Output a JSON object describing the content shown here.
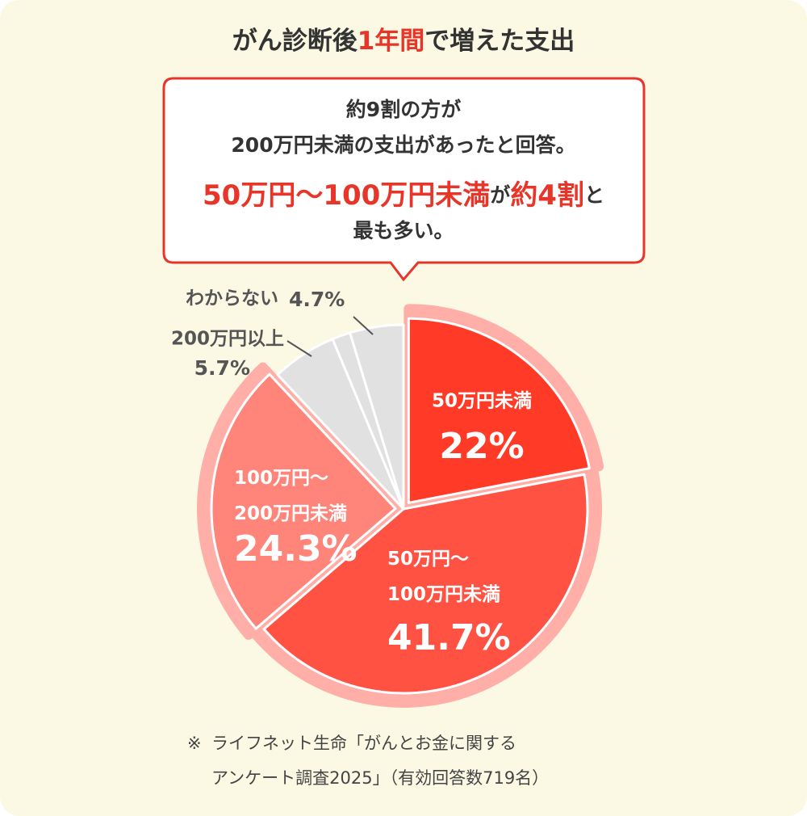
{
  "chart_data": {
    "type": "pie",
    "title": [
      "がん診断後",
      "1年間",
      "で増えた支出"
    ],
    "title_highlight": 1,
    "categories": [
      "50万円未満",
      "50万円〜\n100万円未満",
      "100万円〜\n200万円未満",
      "200万円以上",
      null,
      "わからない"
    ],
    "values": [
      22,
      41.7,
      24.3,
      5.7,
      1.6,
      4.7
    ],
    "value_labels": [
      "22%",
      "41.7%",
      "24.3%",
      "5.7%",
      null,
      "4.7%"
    ],
    "colors": [
      "#ff3b28",
      "#ff5243",
      "#ff847a",
      "#e1e1e1",
      "#e1e1e1",
      "#e1e1e1"
    ]
  },
  "callout": {
    "lines": [
      [
        {
          "text": "約9割の方が",
          "em": false
        }
      ],
      [
        {
          "text": "200万円未満の支出があったと回答。",
          "em": false
        }
      ],
      [
        {
          "text": "50万円〜100万円未満",
          "em": true
        },
        {
          "text": "が",
          "em": false
        },
        {
          "text": "約4割",
          "em": true
        },
        {
          "text": "と",
          "em": false
        }
      ],
      [
        {
          "text": "最も多い。",
          "em": false
        }
      ]
    ]
  },
  "source": [
    "※",
    "ライフネット生命「がんとお金に関する",
    "アンケート調査2025」（有効回答数719名）"
  ]
}
